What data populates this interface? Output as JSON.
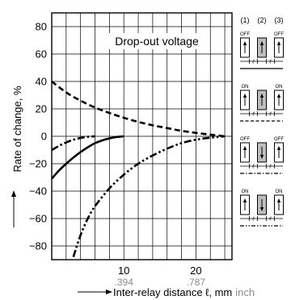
{
  "chart_data": {
    "type": "line",
    "title": "Drop-out voltage",
    "ylabel": "Rate of change, %",
    "xlabel": "Inter-relay distance ℓ, mm",
    "xlabel_unit2": "inch",
    "xlim": [
      0,
      25
    ],
    "ylim": [
      -90,
      90
    ],
    "x_ticks": [
      10,
      20
    ],
    "x_ticks_inch": [
      ".394",
      ".787"
    ],
    "y_ticks": [
      80,
      60,
      40,
      20,
      0,
      -20,
      -40,
      -60,
      -80
    ],
    "series": [
      {
        "style": "dashed",
        "x": [
          0,
          2,
          4,
          6,
          8,
          10,
          12,
          14,
          16,
          18,
          20,
          22,
          24
        ],
        "y": [
          40,
          32,
          26,
          21,
          17,
          13.5,
          10.5,
          8,
          6,
          4,
          2.5,
          1.2,
          0
        ]
      },
      {
        "style": "dash-dot",
        "x": [
          0,
          1,
          2,
          3,
          4,
          5,
          6
        ],
        "y": [
          -10,
          -7,
          -4.5,
          -2.5,
          -1.2,
          -0.4,
          0
        ]
      },
      {
        "style": "solid",
        "x": [
          0,
          1,
          2,
          3,
          4,
          5,
          6,
          7,
          8,
          9,
          10
        ],
        "y": [
          -31,
          -25,
          -20,
          -15.5,
          -11.5,
          -8,
          -5,
          -3,
          -1.5,
          -0.5,
          0
        ]
      },
      {
        "style": "dash-dot-dot",
        "x": [
          3,
          4,
          5,
          6,
          8,
          10,
          12,
          14,
          16,
          18,
          20,
          22,
          24
        ],
        "y": [
          -88,
          -72,
          -60,
          -51,
          -38,
          -28,
          -20,
          -14,
          -9,
          -5,
          -2.5,
          -1,
          0
        ]
      }
    ],
    "legend": {
      "columns": [
        "(1)",
        "(2)",
        "(3)"
      ],
      "rows": [
        {
          "left": "OFF",
          "right": "OFF",
          "center_dir": "up",
          "line_style": "solid"
        },
        {
          "left": "ON",
          "right": "ON",
          "center_dir": "up",
          "line_style": "dashed"
        },
        {
          "left": "OFF",
          "right": "OFF",
          "center_dir": "down",
          "line_style": "dash-dot"
        },
        {
          "left": "ON",
          "right": "ON",
          "center_dir": "down",
          "line_style": "dash-dot-dot"
        }
      ],
      "distance_symbol": "ℓ"
    }
  }
}
